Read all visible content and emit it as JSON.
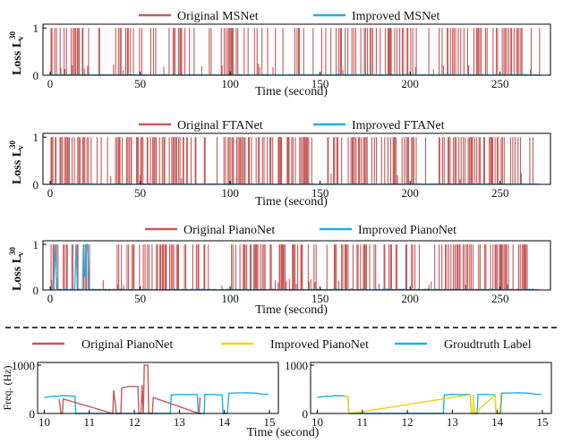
{
  "colors": {
    "original": "#c55a5a",
    "improved": "#1ab0e8",
    "improved_pitch": "#f2d21b",
    "groundtruth": "#1ab0e8",
    "axis": "#000000"
  },
  "chart_data": [
    {
      "type": "line",
      "panel": "loss-msnet",
      "xlabel": "Time (second)",
      "ylabel": "Loss L_v^30",
      "ylabel_main": "Loss L",
      "ylabel_sup": "30",
      "ylabel_sub": "v",
      "legend": [
        "Original MSNet",
        "Improved MSNet"
      ],
      "legend_position": "top-center",
      "xlim": [
        -4,
        278
      ],
      "ylim": [
        0,
        1.08
      ],
      "xticks": [
        0,
        50,
        100,
        150,
        200,
        250
      ],
      "yticks": [
        0,
        1
      ],
      "duration": 272,
      "series": [
        {
          "name": "Original MSNet",
          "pattern": "sparse binary spikes to 1.0",
          "density": 0.42,
          "seed": 11
        },
        {
          "name": "Improved MSNet",
          "pattern": "near-zero",
          "level": 0.01,
          "seed": 12
        }
      ]
    },
    {
      "type": "line",
      "panel": "loss-ftanet",
      "xlabel": "Time (second)",
      "ylabel": "Loss L_v^30",
      "ylabel_main": "Loss L",
      "ylabel_sup": "30",
      "ylabel_sub": "v",
      "legend": [
        "Original FTANet",
        "Improved FTANet"
      ],
      "legend_position": "top-center",
      "xlim": [
        -4,
        278
      ],
      "ylim": [
        0,
        1.08
      ],
      "xticks": [
        0,
        50,
        100,
        150,
        200,
        250
      ],
      "yticks": [
        0,
        1
      ],
      "duration": 272,
      "series": [
        {
          "name": "Original FTANet",
          "pattern": "dense binary spikes to 1.0",
          "density": 0.55,
          "seed": 21
        },
        {
          "name": "Improved FTANet",
          "pattern": "near-zero",
          "level": 0.01,
          "seed": 22
        }
      ]
    },
    {
      "type": "line",
      "panel": "loss-pianonet",
      "xlabel": "Time (second)",
      "ylabel": "Loss L_v^30",
      "ylabel_main": "Loss L",
      "ylabel_sup": "30",
      "ylabel_sub": "v",
      "legend": [
        "Original PianoNet",
        "Improved PianoNet"
      ],
      "legend_position": "top-center",
      "xlim": [
        -4,
        278
      ],
      "ylim": [
        0,
        1.08
      ],
      "xticks": [
        0,
        50,
        100,
        150,
        200,
        250
      ],
      "yticks": [
        0,
        1
      ],
      "duration": 272,
      "series": [
        {
          "name": "Original PianoNet",
          "pattern": "dense binary spikes to 1.0",
          "density": 0.5,
          "seed": 31
        },
        {
          "name": "Improved PianoNet",
          "pattern": "near-zero with few spikes at ~3 s and ~19 s",
          "level": 0.02,
          "seed": 32
        }
      ]
    },
    {
      "type": "line",
      "panel": "pitch-original",
      "xlabel": "Time (second)",
      "ylabel": "Freq. (Hz)",
      "legend": [
        "Original PianoNet",
        "Improved PianoNet",
        "Groudtruth Label"
      ],
      "legend_position": "top",
      "xlim": [
        9.85,
        15.2
      ],
      "ylim": [
        0,
        1000
      ],
      "xticks": [
        10,
        11,
        12,
        13,
        14,
        15
      ],
      "yticks": [
        0,
        1000
      ],
      "series": [
        {
          "name": "Groudtruth Label",
          "points": [
            [
              10.0,
              330
            ],
            [
              10.1,
              345
            ],
            [
              10.2,
              360
            ],
            [
              10.3,
              355
            ],
            [
              10.4,
              370
            ],
            [
              10.5,
              365
            ],
            [
              10.6,
              360
            ],
            [
              10.68,
              355
            ],
            [
              10.7,
              0
            ],
            [
              12.8,
              0
            ],
            [
              12.82,
              380
            ],
            [
              12.9,
              390
            ],
            [
              13.0,
              395
            ],
            [
              13.1,
              390
            ],
            [
              13.2,
              385
            ],
            [
              13.3,
              395
            ],
            [
              13.4,
              390
            ],
            [
              13.42,
              0
            ],
            [
              13.55,
              0
            ],
            [
              13.57,
              395
            ],
            [
              13.75,
              395
            ],
            [
              13.8,
              390
            ],
            [
              13.95,
              385
            ],
            [
              13.97,
              0
            ],
            [
              14.07,
              0
            ],
            [
              14.1,
              420
            ],
            [
              14.3,
              425
            ],
            [
              14.5,
              430
            ],
            [
              14.7,
              420
            ],
            [
              14.85,
              400
            ],
            [
              14.98,
              395
            ]
          ]
        },
        {
          "name": "Original PianoNet",
          "points": [
            [
              10.33,
              300
            ],
            [
              10.37,
              0
            ],
            [
              10.4,
              0
            ],
            [
              10.42,
              300
            ],
            [
              11.52,
              0
            ],
            [
              11.54,
              480
            ],
            [
              11.6,
              0
            ],
            [
              11.7,
              0
            ],
            [
              11.72,
              530
            ],
            [
              11.9,
              560
            ],
            [
              12.08,
              560
            ],
            [
              12.1,
              0
            ],
            [
              12.15,
              0
            ],
            [
              12.17,
              590
            ],
            [
              12.2,
              0
            ],
            [
              12.22,
              1000
            ],
            [
              12.3,
              1000
            ],
            [
              12.32,
              0
            ],
            [
              12.4,
              0
            ],
            [
              12.42,
              330
            ],
            [
              13.44,
              0
            ],
            [
              13.46,
              330
            ]
          ]
        }
      ]
    },
    {
      "type": "line",
      "panel": "pitch-improved",
      "xlabel": "Time (second)",
      "ylabel": "",
      "legend": [
        "Improved PianoNet",
        "Groudtruth Label"
      ],
      "xlim": [
        9.85,
        15.2
      ],
      "ylim": [
        0,
        1000
      ],
      "xticks": [
        10,
        11,
        12,
        13,
        14,
        15
      ],
      "yticks": [
        0,
        1000
      ],
      "series": [
        {
          "name": "Groudtruth Label",
          "points": [
            [
              10.0,
              330
            ],
            [
              10.1,
              345
            ],
            [
              10.2,
              360
            ],
            [
              10.3,
              355
            ],
            [
              10.4,
              370
            ],
            [
              10.5,
              365
            ],
            [
              10.6,
              360
            ],
            [
              10.68,
              355
            ],
            [
              10.7,
              0
            ],
            [
              12.8,
              0
            ],
            [
              12.82,
              380
            ],
            [
              12.9,
              390
            ],
            [
              13.0,
              395
            ],
            [
              13.1,
              390
            ],
            [
              13.2,
              385
            ],
            [
              13.3,
              395
            ],
            [
              13.4,
              390
            ],
            [
              13.42,
              0
            ],
            [
              13.55,
              0
            ],
            [
              13.57,
              395
            ],
            [
              13.75,
              395
            ],
            [
              13.8,
              390
            ],
            [
              13.95,
              385
            ],
            [
              13.97,
              0
            ],
            [
              14.07,
              0
            ],
            [
              14.1,
              420
            ],
            [
              14.3,
              425
            ],
            [
              14.5,
              430
            ],
            [
              14.7,
              420
            ],
            [
              14.85,
              400
            ],
            [
              14.98,
              395
            ]
          ]
        },
        {
          "name": "Improved PianoNet",
          "points": [
            [
              10.6,
              360
            ],
            [
              10.68,
              355
            ],
            [
              10.7,
              0
            ],
            [
              10.75,
              0
            ],
            [
              13.4,
              390
            ],
            [
              13.42,
              0
            ],
            [
              13.45,
              0
            ],
            [
              13.47,
              390
            ],
            [
              13.49,
              0
            ],
            [
              13.95,
              385
            ],
            [
              13.97,
              0
            ],
            [
              14.05,
              0
            ],
            [
              14.08,
              415
            ]
          ]
        }
      ]
    }
  ],
  "labels": {
    "xlabel": "Time (second)",
    "freq_ylabel": "Freq. (Hz)"
  }
}
